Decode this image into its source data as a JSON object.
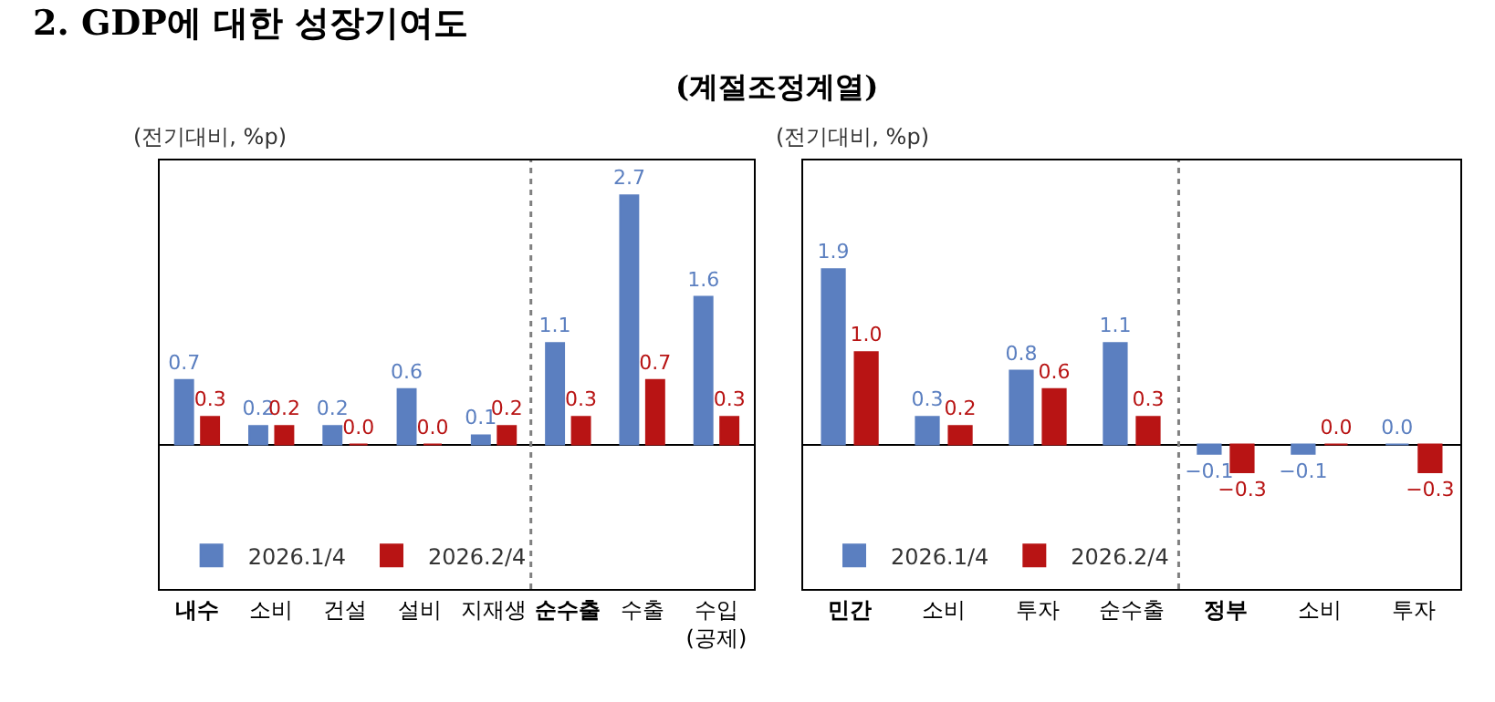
{
  "chart_data": [
    {
      "type": "bar",
      "title": "2. GDP에 대한 성장기여도",
      "subtitle": "(계절조정계열)",
      "ylabel": "(전기대비, %p)",
      "categories": [
        "내수",
        "소비",
        "건설",
        "설비",
        "지재생",
        "순수출",
        "수출",
        "수입(공제)"
      ],
      "series": [
        {
          "name": "2026.1/4",
          "color": "#5b7fc0",
          "values": [
            0.7,
            0.2,
            0.2,
            0.6,
            0.1,
            1.1,
            2.7,
            1.6
          ],
          "value_labels": [
            "0.7",
            "0.2",
            "0.2",
            "0.6",
            "0.1",
            "1.1",
            "2.7",
            "1.6"
          ]
        },
        {
          "name": "2026.2/4",
          "color": "#b81414",
          "values": [
            0.3,
            0.2,
            0.0,
            0.0,
            0.2,
            0.3,
            0.7,
            0.3
          ],
          "value_labels": [
            "0.3",
            "0.2",
            "0.0",
            "0.0",
            "0.2",
            "0.3",
            "0.7",
            "0.3"
          ]
        }
      ],
      "legend": "bottom left"
    },
    {
      "type": "bar",
      "ylabel": "(전기대비, %p)",
      "categories": [
        "민간",
        "소비",
        "투자",
        "순수출",
        "정부",
        "소비",
        "투자"
      ],
      "series": [
        {
          "name": "2026.1/4",
          "color": "#5b7fc0",
          "values": [
            1.9,
            0.3,
            0.8,
            1.1,
            -0.1,
            -0.1,
            0.0
          ],
          "value_labels": [
            "1.9",
            "0.3",
            "0.8",
            "1.1",
            "−0.1",
            "−0.1",
            "0.0"
          ]
        },
        {
          "name": "2026.2/4",
          "color": "#b81414",
          "values": [
            1.0,
            0.2,
            0.6,
            0.3,
            -0.3,
            0.0,
            -0.3
          ],
          "value_labels": [
            "1.0",
            "0.2",
            "0.6",
            "0.3",
            "−0.3",
            "0.0",
            "−0.3"
          ]
        }
      ],
      "legend": "bottom left"
    }
  ]
}
